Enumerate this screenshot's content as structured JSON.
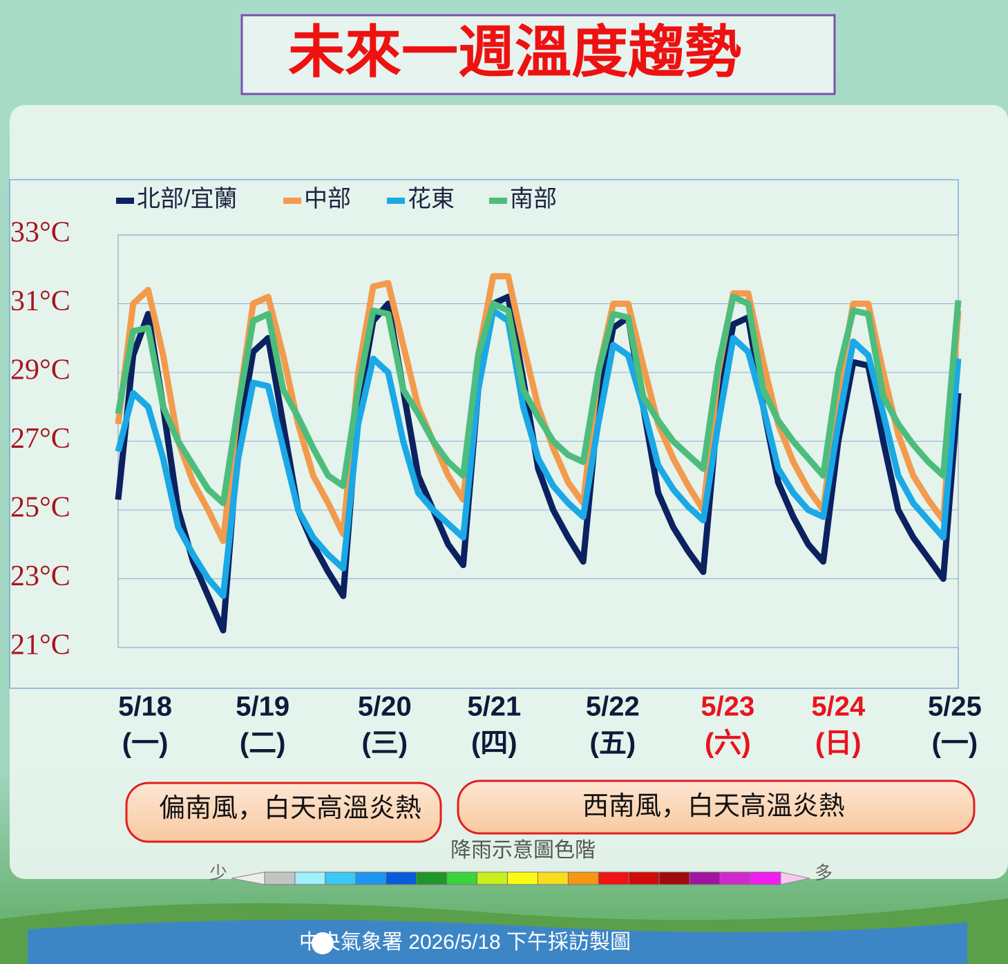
{
  "chart_data": {
    "type": "line",
    "title": "未來一週溫度趨勢",
    "x": [
      0,
      3,
      6,
      9,
      12,
      15,
      18,
      21,
      24,
      27,
      30,
      33,
      36,
      39,
      42,
      45,
      48,
      51,
      54,
      57,
      60,
      63,
      66,
      69,
      72,
      75,
      78,
      81,
      84,
      87,
      90,
      93,
      96,
      99,
      102,
      105,
      108,
      111,
      114,
      117,
      120,
      123,
      126,
      129,
      132,
      135,
      138,
      141,
      144,
      147,
      150,
      153,
      156,
      159,
      162,
      165,
      168
    ],
    "xlim": [
      0,
      168
    ],
    "xticks": [
      {
        "value": 5.4,
        "label": "5/18",
        "sublabel": "(一)",
        "color": "#0d1a3a"
      },
      {
        "value": 28.9,
        "label": "5/19",
        "sublabel": "(二)",
        "color": "#0d1a3a"
      },
      {
        "value": 53.3,
        "label": "5/20",
        "sublabel": "(三)",
        "color": "#0d1a3a"
      },
      {
        "value": 75.2,
        "label": "5/21",
        "sublabel": "(四)",
        "color": "#0d1a3a"
      },
      {
        "value": 98.9,
        "label": "5/22",
        "sublabel": "(五)",
        "color": "#0d1a3a"
      },
      {
        "value": 121.9,
        "label": "5/23",
        "sublabel": "(六)",
        "color": "#e8141e"
      },
      {
        "value": 144.0,
        "label": "5/24",
        "sublabel": "(日)",
        "color": "#e8141e"
      },
      {
        "value": 167.3,
        "label": "5/25",
        "sublabel": "(一)",
        "color": "#0d1a3a"
      }
    ],
    "ylim": [
      21,
      33
    ],
    "yticks": [
      {
        "value": 21,
        "label": "21°C"
      },
      {
        "value": 23,
        "label": "23°C"
      },
      {
        "value": 25,
        "label": "25°C"
      },
      {
        "value": 27,
        "label": "27°C"
      },
      {
        "value": 29,
        "label": "29°C"
      },
      {
        "value": 31,
        "label": "31°C"
      },
      {
        "value": 33,
        "label": "33°C"
      }
    ],
    "grid": true,
    "series": [
      {
        "name": "北部/宜蘭",
        "color": "#0b2160",
        "values": [
          25.3,
          29.5,
          30.7,
          28.0,
          25.0,
          23.5,
          22.5,
          21.5,
          27.0,
          29.6,
          30.0,
          27.5,
          25.0,
          24.0,
          23.2,
          22.5,
          28.0,
          30.5,
          31.0,
          28.5,
          26.0,
          25.0,
          24.0,
          23.4,
          28.5,
          31.0,
          31.2,
          28.8,
          26.2,
          25.0,
          24.2,
          23.5,
          28.0,
          30.3,
          30.6,
          28.0,
          25.5,
          24.5,
          23.8,
          23.2,
          28.0,
          30.4,
          30.6,
          28.0,
          25.8,
          24.8,
          24.0,
          23.5,
          27.0,
          29.3,
          29.2,
          27.0,
          25.0,
          24.2,
          23.6,
          23.0,
          28.4
        ]
      },
      {
        "name": "中部",
        "color": "#f39a4c",
        "values": [
          27.5,
          31.0,
          31.4,
          29.5,
          27.0,
          25.8,
          25.0,
          24.1,
          28.0,
          31.0,
          31.2,
          29.5,
          27.5,
          26.0,
          25.2,
          24.3,
          29.0,
          31.5,
          31.6,
          29.8,
          28.0,
          27.0,
          26.0,
          25.3,
          29.5,
          31.8,
          31.8,
          29.8,
          28.0,
          26.8,
          25.8,
          25.2,
          29.0,
          31.0,
          31.0,
          29.2,
          27.5,
          26.5,
          25.7,
          25.0,
          29.0,
          31.3,
          31.3,
          29.3,
          27.5,
          26.4,
          25.6,
          25.0,
          28.5,
          31.0,
          31.0,
          29.0,
          27.2,
          26.0,
          25.3,
          24.7,
          30.8
        ]
      },
      {
        "name": "花東",
        "color": "#1aa8e6",
        "values": [
          26.7,
          28.4,
          28.0,
          26.5,
          24.5,
          23.7,
          23.0,
          22.5,
          26.5,
          28.7,
          28.6,
          26.8,
          25.0,
          24.2,
          23.7,
          23.3,
          27.5,
          29.4,
          29.0,
          27.0,
          25.5,
          25.0,
          24.6,
          24.2,
          28.5,
          30.8,
          30.5,
          28.0,
          26.5,
          25.7,
          25.2,
          24.8,
          27.5,
          29.8,
          29.5,
          28.0,
          26.3,
          25.6,
          25.1,
          24.7,
          27.5,
          30.0,
          29.6,
          28.0,
          26.2,
          25.5,
          25.0,
          24.8,
          27.5,
          29.9,
          29.5,
          27.8,
          26.0,
          25.2,
          24.7,
          24.2,
          29.4
        ]
      },
      {
        "name": "南部",
        "color": "#4cbd7c",
        "values": [
          27.8,
          30.2,
          30.3,
          28.0,
          27.0,
          26.3,
          25.6,
          25.2,
          28.0,
          30.5,
          30.7,
          28.5,
          27.7,
          26.8,
          26.0,
          25.7,
          28.5,
          30.8,
          30.7,
          28.5,
          27.8,
          27.0,
          26.4,
          26.0,
          29.5,
          31.0,
          30.8,
          28.5,
          27.7,
          27.0,
          26.6,
          26.4,
          29.0,
          30.7,
          30.6,
          28.3,
          27.6,
          27.0,
          26.6,
          26.2,
          29.2,
          31.2,
          31.0,
          28.5,
          27.6,
          27.0,
          26.5,
          26.0,
          29.0,
          30.8,
          30.7,
          28.3,
          27.5,
          26.9,
          26.4,
          26.0,
          31.1
        ]
      }
    ],
    "notes": [
      "偏南風，白天高溫炎熱",
      "西南風，白天高溫炎熱"
    ],
    "rain_scale": {
      "title": "降雨示意圖色階",
      "low": "少",
      "high": "多",
      "colors": [
        "#c4c4c4",
        "#9ef0fa",
        "#3cc8f5",
        "#1e96f0",
        "#0a5adc",
        "#1e9628",
        "#3cd23c",
        "#c8f01e",
        "#fafa14",
        "#fadc1e",
        "#f59614",
        "#f01414",
        "#d20a0a",
        "#a00a0a",
        "#a014a0",
        "#d228d2",
        "#f01ef0"
      ]
    },
    "footer": "中央氣象署 2026/5/18 下午採訪製圖"
  }
}
